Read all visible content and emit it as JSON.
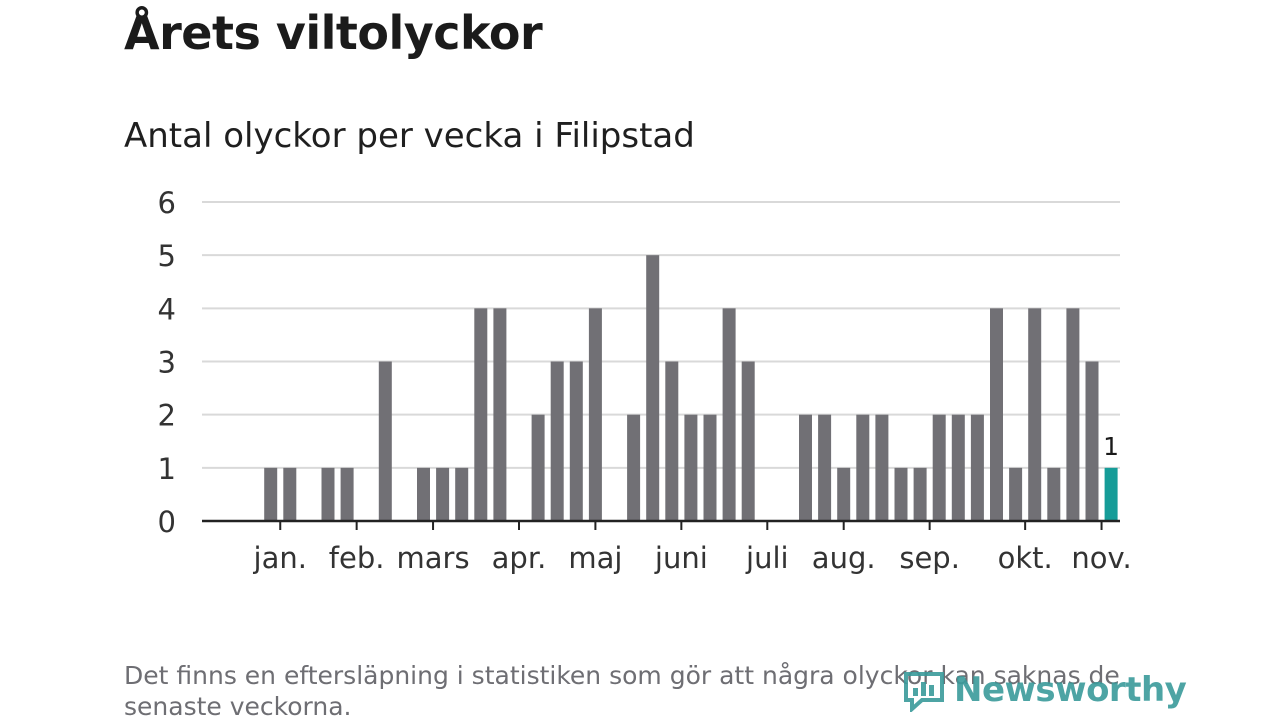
{
  "title": "Årets viltolyckor",
  "subtitle": "Antal olyckor per vecka i Filipstad",
  "footnote": "Det finns en eftersläpning i statistiken som gör att några olyckor kan saknas de senaste veckorna.",
  "logo": {
    "text": "Newsworthy"
  },
  "colors": {
    "bar": "#717075",
    "highlight": "#169c98",
    "grid": "#d9d9d9",
    "axis": "#222222",
    "text": "#333333"
  },
  "chart_data": {
    "type": "bar",
    "title": "Antal olyckor per vecka i Filipstad",
    "xlabel": "",
    "ylabel": "",
    "ylim": [
      0,
      6
    ],
    "yticks": [
      0,
      1,
      2,
      3,
      4,
      5,
      6
    ],
    "weeks": [
      1,
      2,
      3,
      4,
      5,
      6,
      7,
      8,
      9,
      10,
      11,
      12,
      13,
      14,
      15,
      16,
      17,
      18,
      19,
      20,
      21,
      22,
      23,
      24,
      25,
      26,
      27,
      28,
      29,
      30,
      31,
      32,
      33,
      34,
      35,
      36,
      37,
      38,
      39,
      40,
      41,
      42,
      43,
      44,
      45,
      46,
      47
    ],
    "values": [
      0,
      0,
      1,
      1,
      0,
      1,
      1,
      0,
      3,
      0,
      1,
      1,
      1,
      4,
      4,
      0,
      2,
      3,
      3,
      4,
      0,
      2,
      5,
      3,
      2,
      2,
      4,
      3,
      0,
      0,
      2,
      2,
      1,
      2,
      2,
      1,
      1,
      2,
      2,
      2,
      4,
      1,
      4,
      1,
      4,
      3,
      1
    ],
    "highlight_index": 46,
    "highlight_label": "1",
    "month_labels": [
      {
        "label": "jan.",
        "week": 3.5
      },
      {
        "label": "feb.",
        "week": 7.5
      },
      {
        "label": "mars",
        "week": 11.5
      },
      {
        "label": "apr.",
        "week": 16
      },
      {
        "label": "maj",
        "week": 20
      },
      {
        "label": "juni",
        "week": 24.5
      },
      {
        "label": "juli",
        "week": 29
      },
      {
        "label": "aug.",
        "week": 33
      },
      {
        "label": "sep.",
        "week": 37.5
      },
      {
        "label": "okt.",
        "week": 42.5
      },
      {
        "label": "nov.",
        "week": 46.5
      }
    ],
    "month_ticks": [
      3.5,
      7.5,
      11.5,
      16,
      20,
      24.5,
      29,
      33,
      37.5,
      42.5,
      46.5
    ]
  }
}
